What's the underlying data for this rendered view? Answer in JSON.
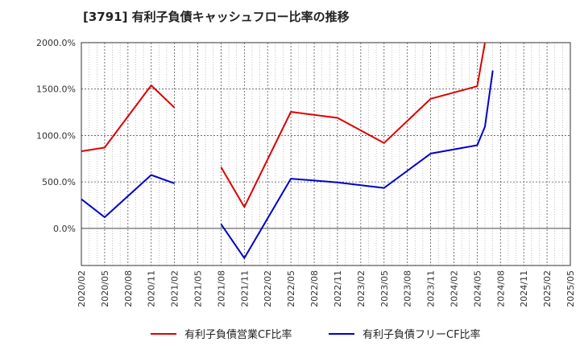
{
  "chart_data": {
    "type": "line",
    "title": "[3791]  有利子負債キャッシュフロー比率の推移",
    "xlabel": "",
    "ylabel": "",
    "x": [
      "2020/02",
      "2020/05",
      "2020/08",
      "2020/11",
      "2021/02",
      "2021/05",
      "2021/08",
      "2021/11",
      "2022/02",
      "2022/05",
      "2022/08",
      "2022/11",
      "2023/02",
      "2023/05",
      "2023/08",
      "2023/11",
      "2024/02",
      "2024/05",
      "2024/08",
      "2024/11",
      "2025/02",
      "2025/05"
    ],
    "x_tick_labels": [
      "2020/02",
      "2020/05",
      "2020/08",
      "2020/11",
      "2021/02",
      "2021/05",
      "2021/08",
      "2021/11",
      "2022/02",
      "2022/05",
      "2022/08",
      "2022/11",
      "2023/02",
      "2023/05",
      "2023/08",
      "2023/11",
      "2024/02",
      "2024/05",
      "2024/08",
      "2024/11",
      "2025/02",
      "2025/05"
    ],
    "y_ticks": [
      0,
      500,
      1000,
      1500,
      2000
    ],
    "y_tick_labels": [
      "0.0%",
      "500.0%",
      "1000.0%",
      "1500.0%",
      "2000.0%"
    ],
    "ylim": [
      -400,
      2000
    ],
    "grid": true,
    "legend_position": "bottom",
    "series": [
      {
        "name": "有利子負債営業CF比率",
        "color": "#dd0000",
        "points": [
          {
            "x": "2020/02",
            "y": 830
          },
          {
            "x": "2020/05",
            "y": 870
          },
          {
            "x": "2020/11",
            "y": 1540
          },
          {
            "x": "2021/02",
            "y": 1300
          },
          {
            "x": "2021/08",
            "y": 660
          },
          {
            "x": "2021/11",
            "y": 230
          },
          {
            "x": "2022/05",
            "y": 1255
          },
          {
            "x": "2022/11",
            "y": 1190
          },
          {
            "x": "2023/05",
            "y": 920
          },
          {
            "x": "2023/11",
            "y": 1395
          },
          {
            "x": "2024/05",
            "y": 1530
          },
          {
            "x": "2024/06",
            "y": 2000
          }
        ],
        "segments": [
          [
            0,
            1,
            2,
            3
          ],
          [
            4,
            5,
            6,
            7,
            8,
            9,
            10,
            11
          ]
        ]
      },
      {
        "name": "有利子負債フリーCF比率",
        "color": "#0000cc",
        "points": [
          {
            "x": "2020/02",
            "y": 315
          },
          {
            "x": "2020/05",
            "y": 120
          },
          {
            "x": "2020/11",
            "y": 575
          },
          {
            "x": "2021/02",
            "y": 485
          },
          {
            "x": "2021/08",
            "y": 45
          },
          {
            "x": "2021/11",
            "y": -320
          },
          {
            "x": "2022/05",
            "y": 535
          },
          {
            "x": "2022/11",
            "y": 495
          },
          {
            "x": "2023/05",
            "y": 435
          },
          {
            "x": "2023/11",
            "y": 805
          },
          {
            "x": "2024/05",
            "y": 895
          },
          {
            "x": "2024/06",
            "y": 1095
          },
          {
            "x": "2024/07",
            "y": 1700
          }
        ],
        "segments": [
          [
            0,
            1,
            2,
            3
          ],
          [
            4,
            5,
            6,
            7,
            8,
            9,
            10,
            11,
            12
          ]
        ]
      }
    ]
  }
}
